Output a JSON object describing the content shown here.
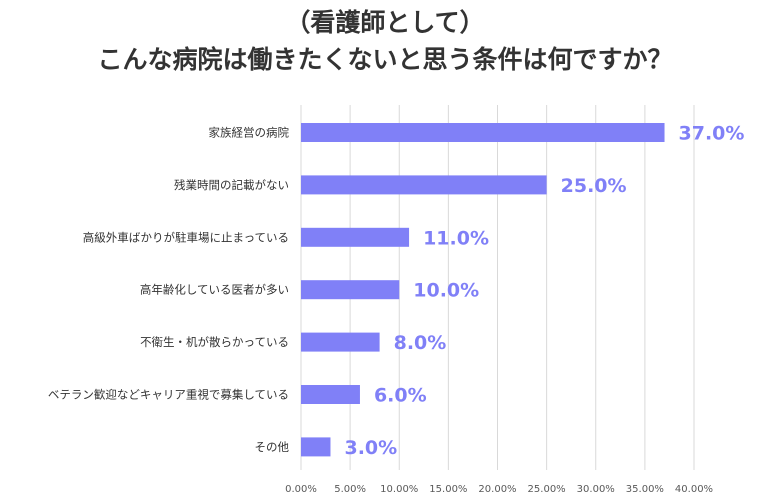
{
  "title": {
    "line1": "（看護師として）",
    "line2": "こんな病院は働きたくないと思う条件は何ですか？"
  },
  "colors": {
    "bar": "#8080f7",
    "value_label": "#8080f7",
    "grid": "#d9d9d9",
    "title": "#333333"
  },
  "chart_data": {
    "type": "bar",
    "orientation": "horizontal",
    "title": "（看護師として）こんな病院は働きたくないと思う条件は何ですか？",
    "categories": [
      "家族経営の病院",
      "残業時間の記載がない",
      "高級外車ばかりが駐車場に止まっている",
      "高年齢化している医者が多い",
      "不衛生・机が散らかっている",
      "ベテラン歓迎などキャリア重視で募集している",
      "その他"
    ],
    "values": [
      37.0,
      25.0,
      11.0,
      10.0,
      8.0,
      6.0,
      3.0
    ],
    "value_labels": [
      "37.0%",
      "25.0%",
      "11.0%",
      "10.0%",
      "8.0%",
      "6.0%",
      "3.0%"
    ],
    "xlim": [
      0,
      40
    ],
    "x_ticks": [
      0,
      5,
      10,
      15,
      20,
      25,
      30,
      35,
      40
    ],
    "x_tick_labels": [
      "0.00%",
      "5.00%",
      "10.00%",
      "15.00%",
      "20.00%",
      "25.00%",
      "30.00%",
      "35.00%",
      "40.00%"
    ],
    "grid": true,
    "legend": "none",
    "xlabel": "",
    "ylabel": ""
  }
}
